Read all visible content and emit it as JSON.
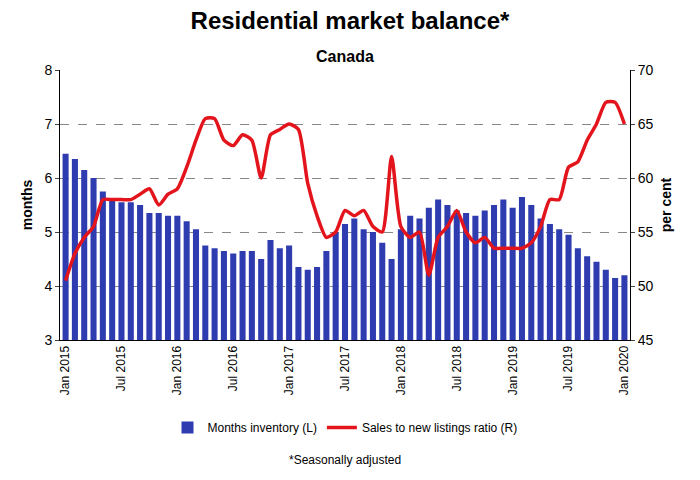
{
  "chart_data": {
    "type": "combo",
    "title": "Residential market balance*",
    "subtitle": "Canada",
    "footnote": "*Seasonally adjusted",
    "y_label": "months",
    "y2_label": "per cent",
    "categories": [
      "Jan 2015",
      null,
      null,
      null,
      null,
      null,
      "Jul 2015",
      null,
      null,
      null,
      null,
      null,
      "Jan 2016",
      null,
      null,
      null,
      null,
      null,
      "Jul 2016",
      null,
      null,
      null,
      null,
      null,
      "Jan 2017",
      null,
      null,
      null,
      null,
      null,
      "Jul 2017",
      null,
      null,
      null,
      null,
      null,
      "Jan 2018",
      null,
      null,
      null,
      null,
      null,
      "Jul 2018",
      null,
      null,
      null,
      null,
      null,
      "Jan 2019",
      null,
      null,
      null,
      null,
      null,
      "Jul 2019",
      null,
      null,
      null,
      null,
      null,
      "Jan 2020"
    ],
    "series": [
      {
        "name": "Months inventory (L)",
        "type": "bar",
        "color": "#2e3cb0",
        "axis": "y",
        "values": [
          6.45,
          6.35,
          6.15,
          6.0,
          5.75,
          5.6,
          5.55,
          5.55,
          5.5,
          5.35,
          5.35,
          5.3,
          5.3,
          5.2,
          5.05,
          4.75,
          4.7,
          4.65,
          4.6,
          4.65,
          4.65,
          4.5,
          4.85,
          4.7,
          4.75,
          4.35,
          4.3,
          4.35,
          4.65,
          5.0,
          5.15,
          5.25,
          5.05,
          5.0,
          4.8,
          4.5,
          5.05,
          5.3,
          5.25,
          5.45,
          5.6,
          5.5,
          5.4,
          5.35,
          5.3,
          5.4,
          5.5,
          5.6,
          5.45,
          5.65,
          5.5,
          5.25,
          5.15,
          5.05,
          4.95,
          4.7,
          4.55,
          4.45,
          4.3,
          4.15,
          4.2
        ]
      },
      {
        "name": "Sales to new listings ratio (R)",
        "type": "line",
        "color": "#e3141c",
        "axis": "y2",
        "line_style": "solid",
        "values": [
          50.5,
          53,
          54.5,
          55.5,
          58,
          58,
          58,
          58,
          58.5,
          59,
          57.5,
          58.5,
          59,
          61,
          63.5,
          65.5,
          65.5,
          63.5,
          63,
          64,
          63.5,
          60,
          64,
          64.5,
          65,
          64.5,
          59.5,
          56.5,
          54.5,
          55,
          57,
          56.5,
          57,
          55.5,
          55,
          62,
          55.5,
          54.5,
          55,
          51,
          54.5,
          55.5,
          57,
          55,
          54,
          54.5,
          53.5,
          53.5,
          53.5,
          53.5,
          54,
          55.5,
          58,
          58,
          61,
          61.5,
          63.5,
          65,
          67,
          67,
          65
        ]
      }
    ],
    "ylim": [
      3,
      8
    ],
    "yticks": [
      3,
      4,
      5,
      6,
      7,
      8
    ],
    "y2lim": [
      45,
      70
    ],
    "y2ticks": [
      45,
      50,
      55,
      60,
      65,
      70
    ],
    "grid": true,
    "legend": "bottom"
  }
}
